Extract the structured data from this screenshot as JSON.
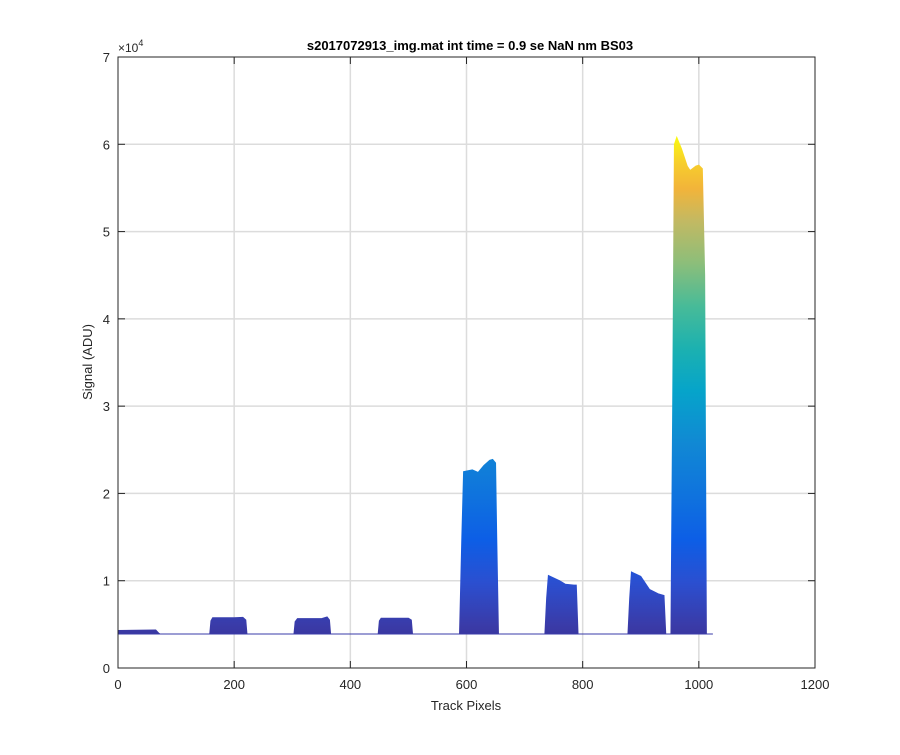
{
  "chart_data": {
    "type": "area",
    "title": "s2017072913_img.mat int time = 0.9 se  NaN nm BS03",
    "xlabel": "Track Pixels",
    "ylabel": "Signal (ADU)",
    "y_exponent_label": "×10",
    "y_exponent_power": "4",
    "xlim": [
      0,
      1200
    ],
    "ylim": [
      0,
      70000
    ],
    "x_ticks": [
      0,
      200,
      400,
      600,
      800,
      1000,
      1200
    ],
    "x_tick_labels": [
      "0",
      "200",
      "400",
      "600",
      "800",
      "1000",
      "1200"
    ],
    "y_ticks": [
      0,
      10000,
      20000,
      30000,
      40000,
      50000,
      60000,
      70000
    ],
    "y_tick_labels": [
      "0",
      "1",
      "2",
      "3",
      "4",
      "5",
      "6",
      "7"
    ],
    "grid": true,
    "colormap": "parula",
    "color_range": [
      0,
      61000
    ],
    "baseline": 3900,
    "x_extent": [
      0,
      1024
    ],
    "series": [
      {
        "points": [
          [
            0,
            4300
          ],
          [
            65,
            4350
          ],
          [
            70,
            4000
          ],
          [
            72,
            3900
          ],
          [
            158,
            3900
          ],
          [
            160,
            5400
          ],
          [
            163,
            5750
          ],
          [
            200,
            5750
          ],
          [
            215,
            5800
          ],
          [
            220,
            5500
          ],
          [
            222,
            3900
          ],
          [
            303,
            3900
          ],
          [
            305,
            5300
          ],
          [
            309,
            5650
          ],
          [
            350,
            5650
          ],
          [
            360,
            5850
          ],
          [
            364,
            5500
          ],
          [
            366,
            3900
          ],
          [
            448,
            3900
          ],
          [
            450,
            5400
          ],
          [
            453,
            5700
          ],
          [
            500,
            5700
          ],
          [
            505,
            5500
          ],
          [
            507,
            3900
          ],
          [
            588,
            3900
          ],
          [
            592,
            15000
          ],
          [
            595,
            22500
          ],
          [
            610,
            22700
          ],
          [
            620,
            22400
          ],
          [
            630,
            23200
          ],
          [
            640,
            23800
          ],
          [
            645,
            23900
          ],
          [
            650,
            23500
          ],
          [
            652,
            15000
          ],
          [
            655,
            3900
          ],
          [
            735,
            3900
          ],
          [
            738,
            8000
          ],
          [
            741,
            10600
          ],
          [
            760,
            10000
          ],
          [
            770,
            9600
          ],
          [
            785,
            9500
          ],
          [
            789,
            9500
          ],
          [
            792,
            3900
          ],
          [
            878,
            3900
          ],
          [
            881,
            8000
          ],
          [
            884,
            11000
          ],
          [
            900,
            10500
          ],
          [
            915,
            9000
          ],
          [
            930,
            8500
          ],
          [
            940,
            8300
          ],
          [
            943,
            3900
          ],
          [
            948,
            3900
          ],
          [
            952,
            3900
          ],
          [
            955,
            30000
          ],
          [
            958,
            60000
          ],
          [
            962,
            60800
          ],
          [
            970,
            59500
          ],
          [
            980,
            57500
          ],
          [
            985,
            57000
          ],
          [
            995,
            57500
          ],
          [
            1000,
            57600
          ],
          [
            1006,
            57200
          ],
          [
            1010,
            45000
          ],
          [
            1013,
            3900
          ],
          [
            1024,
            3900
          ]
        ]
      }
    ]
  }
}
